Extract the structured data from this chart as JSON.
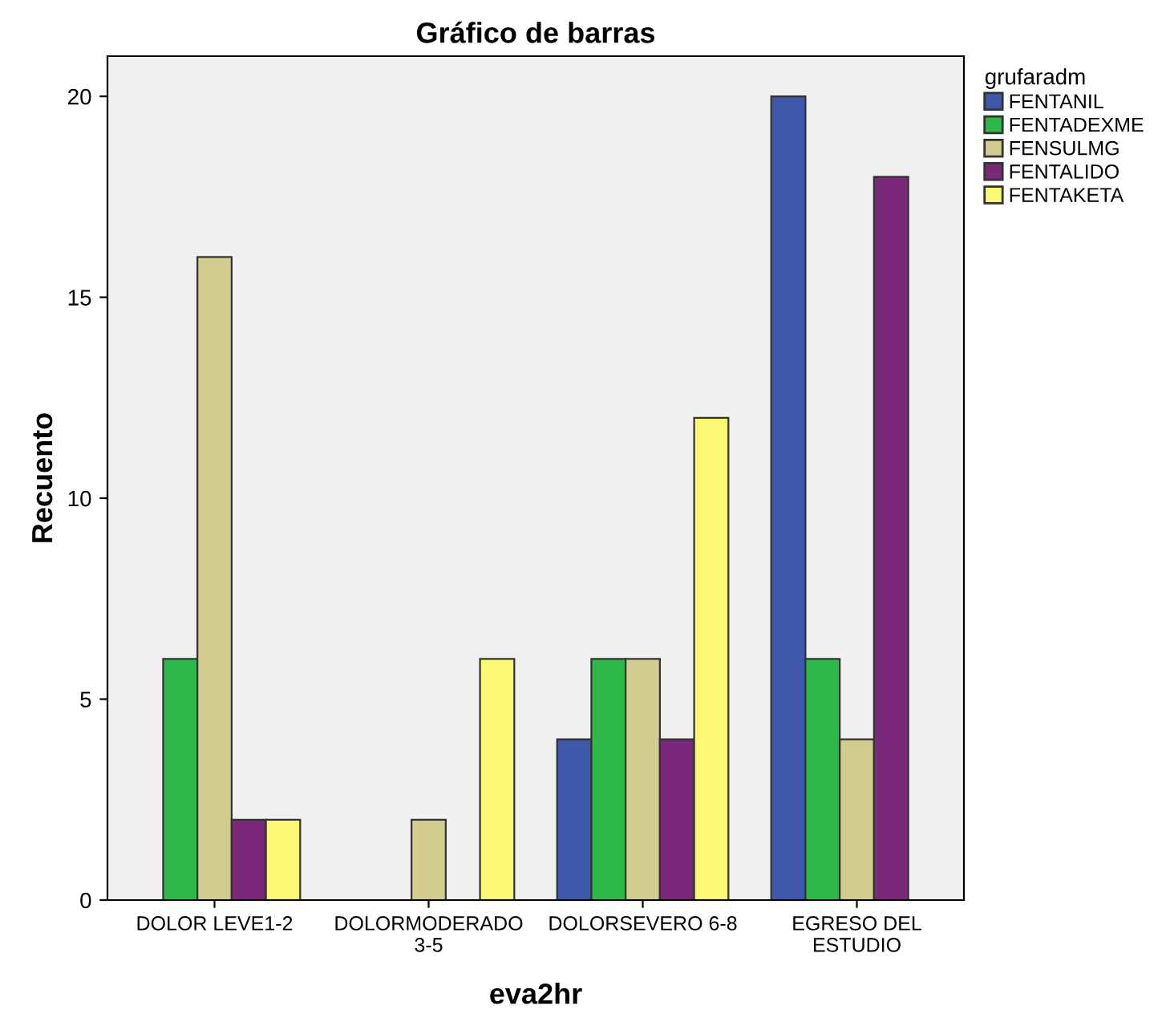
{
  "chart_data": {
    "type": "bar",
    "title": "Gráfico de barras",
    "xlabel": "eva2hr",
    "ylabel": "Recuento",
    "legend_title": "grufaradm",
    "categories": [
      "DOLOR LEVE1-2",
      "DOLORMODERADO 3-5",
      "DOLORSEVERO 6-8",
      "EGRESO DEL ESTUDIO"
    ],
    "series": [
      {
        "name": "FENTANIL",
        "color": "#3e58ac",
        "values": [
          0,
          0,
          4,
          20
        ]
      },
      {
        "name": "FENTADEXME",
        "color": "#2eb848",
        "values": [
          6,
          0,
          6,
          6
        ]
      },
      {
        "name": "FENSULMG",
        "color": "#d2cc8e",
        "values": [
          16,
          2,
          6,
          4
        ]
      },
      {
        "name": "FENTALIDO",
        "color": "#79287a",
        "values": [
          2,
          0,
          4,
          18
        ]
      },
      {
        "name": "FENTAKETA",
        "color": "#fbf873",
        "values": [
          2,
          6,
          12,
          0
        ]
      }
    ],
    "ylim": [
      0,
      21
    ],
    "yticks": [
      0,
      5,
      10,
      15,
      20
    ],
    "grid": false,
    "legend": "right"
  }
}
